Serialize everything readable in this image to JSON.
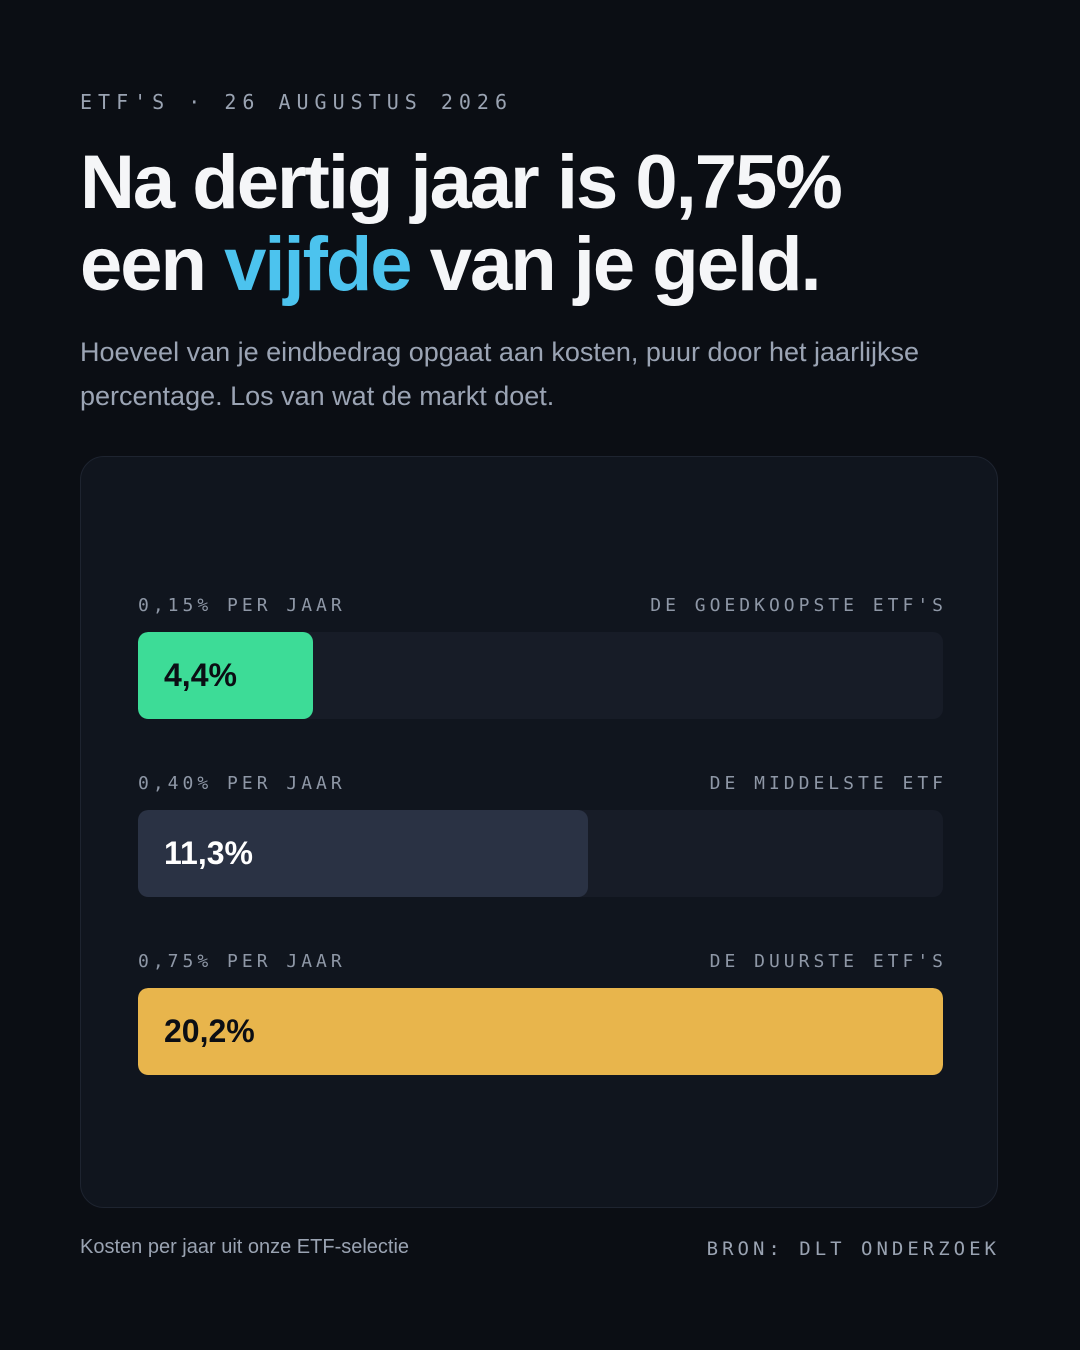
{
  "kicker": "ETF'S · 26 AUGUSTUS 2026",
  "headline": {
    "line1": "Na dertig jaar is 0,75%",
    "line2_pre": "een ",
    "line2_accent": "vijfde",
    "line2_post": " van je geld."
  },
  "subtitle": "Hoeveel van je eindbedrag opgaat aan kosten, puur door het jaarlijkse percentage. Los van wat de markt doet.",
  "colors": {
    "accent": "#4cc3ee",
    "green": "#3ddc97",
    "slate": "#2a3244",
    "gold": "#e8b54c"
  },
  "chart_data": {
    "type": "bar",
    "orientation": "horizontal",
    "categories": [
      "0,15% PER JAAR",
      "0,40% PER JAAR",
      "0,75% PER JAAR"
    ],
    "category_notes": [
      "DE GOEDKOOPSTE ETF'S",
      "DE MIDDELSTE ETF",
      "DE DUURSTE ETF'S"
    ],
    "values": [
      4.4,
      11.3,
      20.2
    ],
    "value_labels": [
      "4,4%",
      "11,3%",
      "20,2%"
    ],
    "bar_colors": [
      "#3ddc97",
      "#2a3244",
      "#e8b54c"
    ],
    "label_colors": [
      "#0b0e14",
      "#ffffff",
      "#0b0e14"
    ],
    "xlim": [
      0,
      20.2
    ],
    "title": "",
    "xlabel": "",
    "ylabel": ""
  },
  "footer": {
    "note": "Kosten per jaar uit onze ETF-selectie",
    "source": "BRON: DLT ONDERZOEK"
  }
}
